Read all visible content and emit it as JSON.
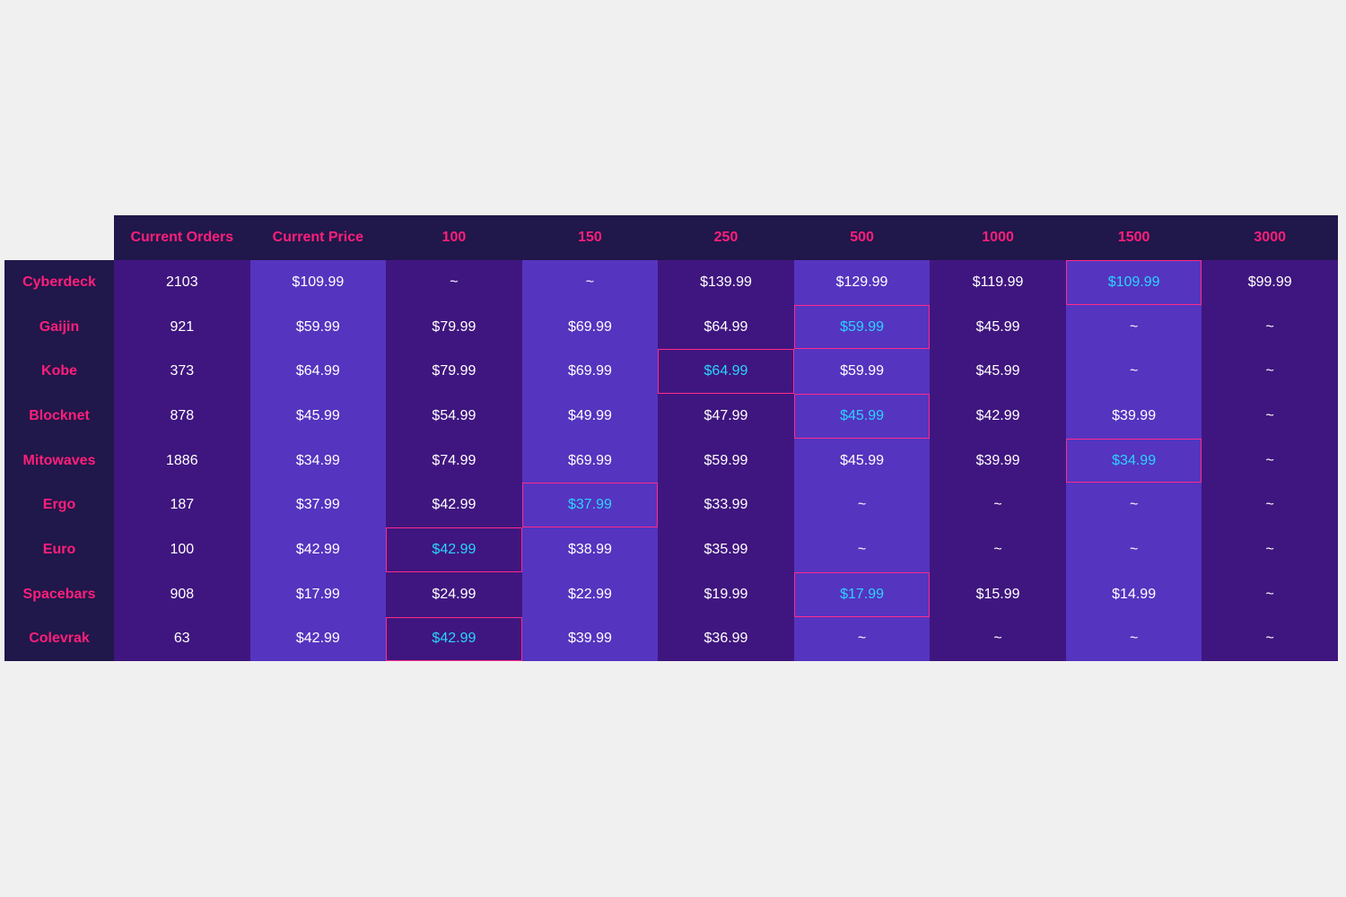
{
  "chart_data": {
    "type": "table",
    "colors": {
      "header_bg": "#20174a",
      "header_text": "#ff1f7a",
      "cell_dark": "#3f167f",
      "cell_light": "#5534bf",
      "cell_text": "#ffffff",
      "best_text": "#2ad4ff",
      "best_border": "#ff2a8a"
    },
    "columns": [
      "Current Orders",
      "Current Price",
      "100",
      "150",
      "250",
      "500",
      "1000",
      "1500",
      "3000"
    ],
    "rows": [
      {
        "name": "Cyberdeck",
        "cells": [
          "2103",
          "$109.99",
          "~",
          "~",
          "$139.99",
          "$129.99",
          "$119.99",
          "$109.99",
          "$99.99"
        ],
        "best": 7
      },
      {
        "name": "Gaijin",
        "cells": [
          "921",
          "$59.99",
          "$79.99",
          "$69.99",
          "$64.99",
          "$59.99",
          "$45.99",
          "~",
          "~"
        ],
        "best": 5
      },
      {
        "name": "Kobe",
        "cells": [
          "373",
          "$64.99",
          "$79.99",
          "$69.99",
          "$64.99",
          "$59.99",
          "$45.99",
          "~",
          "~"
        ],
        "best": 4
      },
      {
        "name": "Blocknet",
        "cells": [
          "878",
          "$45.99",
          "$54.99",
          "$49.99",
          "$47.99",
          "$45.99",
          "$42.99",
          "$39.99",
          "~"
        ],
        "best": 5
      },
      {
        "name": "Mitowaves",
        "cells": [
          "1886",
          "$34.99",
          "$74.99",
          "$69.99",
          "$59.99",
          "$45.99",
          "$39.99",
          "$34.99",
          "~"
        ],
        "best": 7
      },
      {
        "name": "Ergo",
        "cells": [
          "187",
          "$37.99",
          "$42.99",
          "$37.99",
          "$33.99",
          "~",
          "~",
          "~",
          "~"
        ],
        "best": 3
      },
      {
        "name": "Euro",
        "cells": [
          "100",
          "$42.99",
          "$42.99",
          "$38.99",
          "$35.99",
          "~",
          "~",
          "~",
          "~"
        ],
        "best": 2
      },
      {
        "name": "Spacebars",
        "cells": [
          "908",
          "$17.99",
          "$24.99",
          "$22.99",
          "$19.99",
          "$17.99",
          "$15.99",
          "$14.99",
          "~"
        ],
        "best": 5
      },
      {
        "name": "Colevrak",
        "cells": [
          "63",
          "$42.99",
          "$42.99",
          "$39.99",
          "$36.99",
          "~",
          "~",
          "~",
          "~"
        ],
        "best": 2
      }
    ]
  }
}
